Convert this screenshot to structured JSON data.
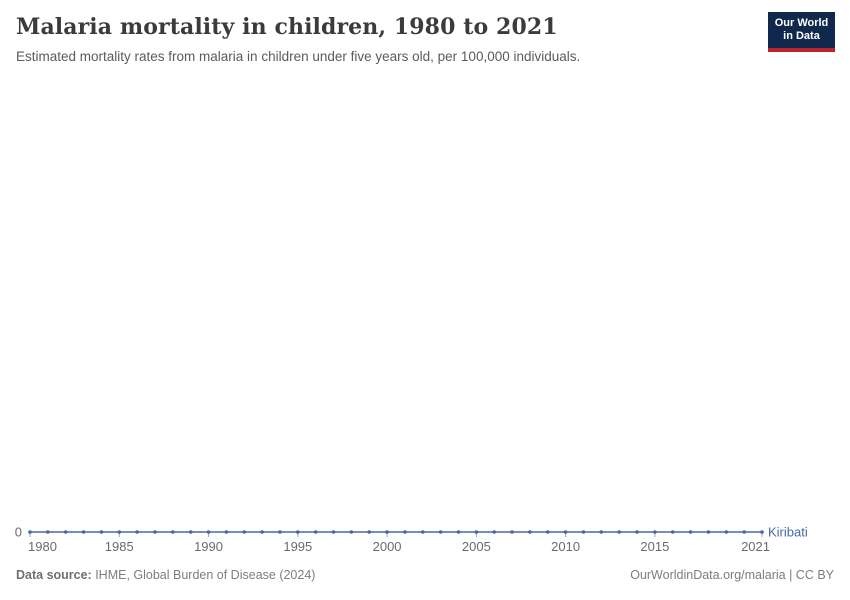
{
  "chart_data": {
    "type": "line",
    "title": "Malaria mortality in children, 1980 to 2021",
    "subtitle": "Estimated mortality rates from malaria in children under five years old, per 100,000 individuals.",
    "xlabel": "",
    "ylabel": "",
    "x": [
      1980,
      1981,
      1982,
      1983,
      1984,
      1985,
      1986,
      1987,
      1988,
      1989,
      1990,
      1991,
      1992,
      1993,
      1994,
      1995,
      1996,
      1997,
      1998,
      1999,
      2000,
      2001,
      2002,
      2003,
      2004,
      2005,
      2006,
      2007,
      2008,
      2009,
      2010,
      2011,
      2012,
      2013,
      2014,
      2015,
      2016,
      2017,
      2018,
      2019,
      2020,
      2021
    ],
    "series": [
      {
        "name": "Kiribati",
        "color": "#4668a8",
        "values": [
          0,
          0,
          0,
          0,
          0,
          0,
          0,
          0,
          0,
          0,
          0,
          0,
          0,
          0,
          0,
          0,
          0,
          0,
          0,
          0,
          0,
          0,
          0,
          0,
          0,
          0,
          0,
          0,
          0,
          0,
          0,
          0,
          0,
          0,
          0,
          0,
          0,
          0,
          0,
          0,
          0,
          0
        ]
      }
    ],
    "x_ticks": [
      1980,
      1985,
      1990,
      1995,
      2000,
      2005,
      2010,
      2015,
      2021
    ],
    "x_tick_labels": [
      "1980",
      "1985",
      "1990",
      "1995",
      "2000",
      "2005",
      "2010",
      "2015",
      "2021"
    ],
    "y_ticks": [
      0
    ],
    "y_tick_labels": [
      "0"
    ],
    "xlim": [
      1980,
      2021
    ],
    "grid": false,
    "legend_position": "end-of-line-label"
  },
  "colors": {
    "line": "#4668a8",
    "tick_mark": "#9aa5b8",
    "axis_label": "#6b6b6b",
    "entity_label": "#4668a8"
  },
  "logo": {
    "line1": "Our World",
    "line2": "in Data",
    "background": "#10284C",
    "bar": "#B9232D"
  },
  "footer": {
    "source_label": "Data source:",
    "source_text": " IHME, Global Burden of Disease (2024)",
    "attribution": "OurWorldinData.org/malaria | CC BY"
  }
}
